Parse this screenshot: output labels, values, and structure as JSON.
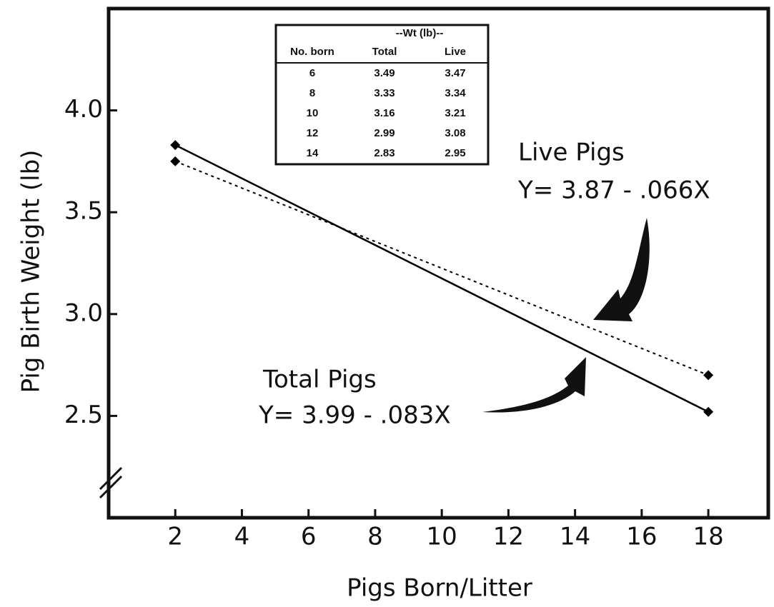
{
  "chart_data": {
    "type": "line",
    "x_label": "Pigs Born/Litter",
    "y_label": "Pig Birth Weight (lb)",
    "x": [
      2,
      18
    ],
    "series": [
      {
        "name": "Total Pigs",
        "color": "#000000",
        "dash": "solid",
        "values": [
          3.83,
          2.52
        ]
      },
      {
        "name": "Live Pigs",
        "color": "#000000",
        "dash": "dotted",
        "values": [
          3.75,
          2.7
        ]
      }
    ],
    "xlim": [
      0,
      19.8
    ],
    "ylim": [
      2.0,
      4.5
    ],
    "xticks": [
      2,
      4,
      6,
      8,
      10,
      12,
      14,
      16,
      18
    ],
    "yticks": [
      2.5,
      {
        "value": 3,
        "label": "3.0"
      },
      3.5,
      {
        "value": 4,
        "label": "4.0"
      }
    ],
    "annotations": [
      "Y= 3.99 - .083X",
      "Y= 3.87 - .066X"
    ],
    "table": {
      "group_header": "--Wt (lb)--",
      "columns": [
        "No. born",
        "Total",
        "Live"
      ],
      "rows": [
        [
          "6",
          "3.49",
          "3.47"
        ],
        [
          "8",
          "3.33",
          "3.34"
        ],
        [
          "10",
          "3.16",
          "3.21"
        ],
        [
          "12",
          "2.99",
          "3.08"
        ],
        [
          "14",
          "2.83",
          "2.95"
        ]
      ]
    }
  }
}
